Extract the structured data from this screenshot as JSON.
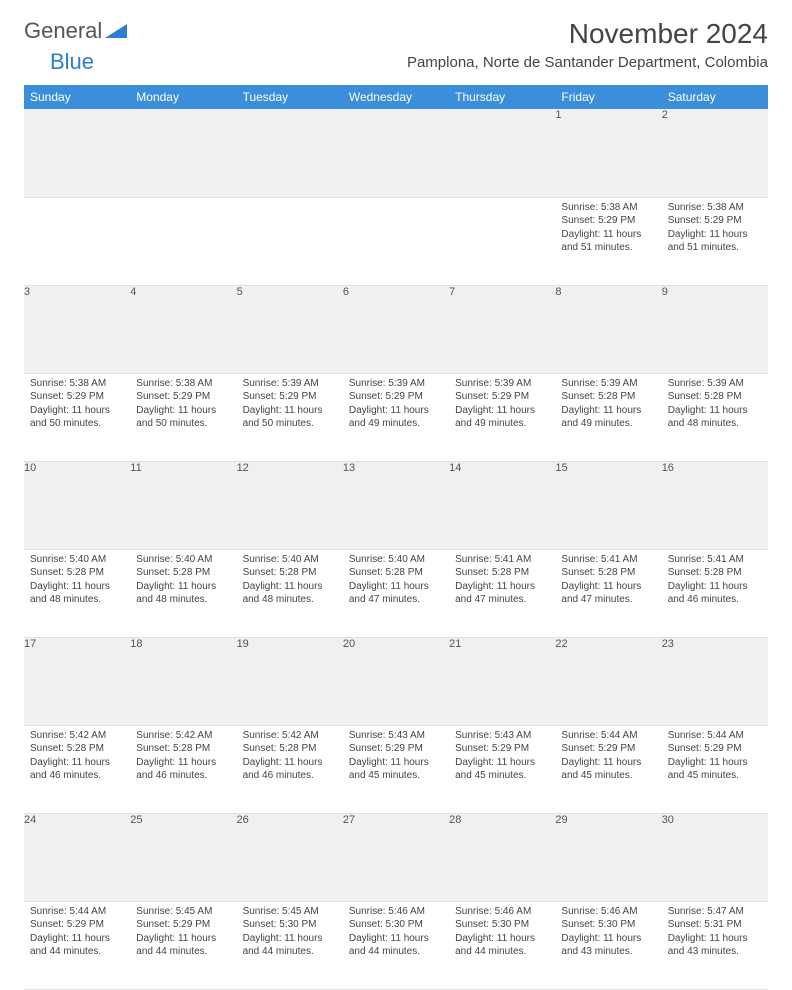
{
  "logo": {
    "text1": "General",
    "text2": "Blue"
  },
  "title": "November 2024",
  "location": "Pamplona, Norte de Santander Department, Colombia",
  "colors": {
    "header_bg": "#3b8ed9",
    "header_text": "#ffffff",
    "daynum_bg": "#eef0f2",
    "accent_border": "#3b8ed9",
    "body_text": "#444444",
    "page_bg": "#ffffff"
  },
  "weekdays": [
    "Sunday",
    "Monday",
    "Tuesday",
    "Wednesday",
    "Thursday",
    "Friday",
    "Saturday"
  ],
  "weeks": [
    [
      null,
      null,
      null,
      null,
      null,
      {
        "n": "1",
        "sr": "5:38 AM",
        "ss": "5:29 PM",
        "dl": "11 hours and 51 minutes."
      },
      {
        "n": "2",
        "sr": "5:38 AM",
        "ss": "5:29 PM",
        "dl": "11 hours and 51 minutes."
      }
    ],
    [
      {
        "n": "3",
        "sr": "5:38 AM",
        "ss": "5:29 PM",
        "dl": "11 hours and 50 minutes."
      },
      {
        "n": "4",
        "sr": "5:38 AM",
        "ss": "5:29 PM",
        "dl": "11 hours and 50 minutes."
      },
      {
        "n": "5",
        "sr": "5:39 AM",
        "ss": "5:29 PM",
        "dl": "11 hours and 50 minutes."
      },
      {
        "n": "6",
        "sr": "5:39 AM",
        "ss": "5:29 PM",
        "dl": "11 hours and 49 minutes."
      },
      {
        "n": "7",
        "sr": "5:39 AM",
        "ss": "5:29 PM",
        "dl": "11 hours and 49 minutes."
      },
      {
        "n": "8",
        "sr": "5:39 AM",
        "ss": "5:28 PM",
        "dl": "11 hours and 49 minutes."
      },
      {
        "n": "9",
        "sr": "5:39 AM",
        "ss": "5:28 PM",
        "dl": "11 hours and 48 minutes."
      }
    ],
    [
      {
        "n": "10",
        "sr": "5:40 AM",
        "ss": "5:28 PM",
        "dl": "11 hours and 48 minutes."
      },
      {
        "n": "11",
        "sr": "5:40 AM",
        "ss": "5:28 PM",
        "dl": "11 hours and 48 minutes."
      },
      {
        "n": "12",
        "sr": "5:40 AM",
        "ss": "5:28 PM",
        "dl": "11 hours and 48 minutes."
      },
      {
        "n": "13",
        "sr": "5:40 AM",
        "ss": "5:28 PM",
        "dl": "11 hours and 47 minutes."
      },
      {
        "n": "14",
        "sr": "5:41 AM",
        "ss": "5:28 PM",
        "dl": "11 hours and 47 minutes."
      },
      {
        "n": "15",
        "sr": "5:41 AM",
        "ss": "5:28 PM",
        "dl": "11 hours and 47 minutes."
      },
      {
        "n": "16",
        "sr": "5:41 AM",
        "ss": "5:28 PM",
        "dl": "11 hours and 46 minutes."
      }
    ],
    [
      {
        "n": "17",
        "sr": "5:42 AM",
        "ss": "5:28 PM",
        "dl": "11 hours and 46 minutes."
      },
      {
        "n": "18",
        "sr": "5:42 AM",
        "ss": "5:28 PM",
        "dl": "11 hours and 46 minutes."
      },
      {
        "n": "19",
        "sr": "5:42 AM",
        "ss": "5:28 PM",
        "dl": "11 hours and 46 minutes."
      },
      {
        "n": "20",
        "sr": "5:43 AM",
        "ss": "5:29 PM",
        "dl": "11 hours and 45 minutes."
      },
      {
        "n": "21",
        "sr": "5:43 AM",
        "ss": "5:29 PM",
        "dl": "11 hours and 45 minutes."
      },
      {
        "n": "22",
        "sr": "5:44 AM",
        "ss": "5:29 PM",
        "dl": "11 hours and 45 minutes."
      },
      {
        "n": "23",
        "sr": "5:44 AM",
        "ss": "5:29 PM",
        "dl": "11 hours and 45 minutes."
      }
    ],
    [
      {
        "n": "24",
        "sr": "5:44 AM",
        "ss": "5:29 PM",
        "dl": "11 hours and 44 minutes."
      },
      {
        "n": "25",
        "sr": "5:45 AM",
        "ss": "5:29 PM",
        "dl": "11 hours and 44 minutes."
      },
      {
        "n": "26",
        "sr": "5:45 AM",
        "ss": "5:30 PM",
        "dl": "11 hours and 44 minutes."
      },
      {
        "n": "27",
        "sr": "5:46 AM",
        "ss": "5:30 PM",
        "dl": "11 hours and 44 minutes."
      },
      {
        "n": "28",
        "sr": "5:46 AM",
        "ss": "5:30 PM",
        "dl": "11 hours and 44 minutes."
      },
      {
        "n": "29",
        "sr": "5:46 AM",
        "ss": "5:30 PM",
        "dl": "11 hours and 43 minutes."
      },
      {
        "n": "30",
        "sr": "5:47 AM",
        "ss": "5:31 PM",
        "dl": "11 hours and 43 minutes."
      }
    ]
  ],
  "labels": {
    "sunrise": "Sunrise:",
    "sunset": "Sunset:",
    "daylight": "Daylight:"
  }
}
